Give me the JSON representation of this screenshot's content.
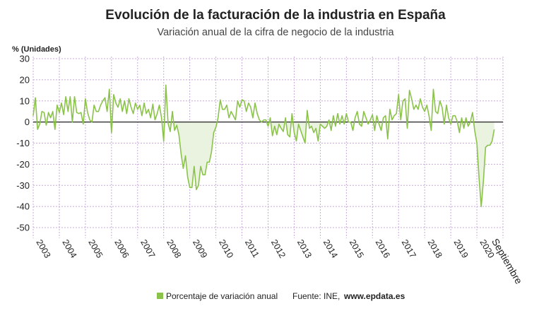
{
  "colors": {
    "series": "#8bc34a",
    "area": "#e9f3df",
    "grid": "#c9a8dd",
    "zero": "#222222"
  },
  "footer": {
    "source_label": "Fuente: INE,",
    "source_site": "www.epdata.es"
  },
  "chart_data": {
    "type": "line",
    "title": "Evolución de la facturación de la industria en España",
    "subtitle": "Variación anual de la cifra de negocio de la industria",
    "ylabel": "% (Unidades)",
    "ylim": [
      -55,
      31
    ],
    "yticks": [
      30,
      20,
      10,
      0,
      -10,
      -20,
      -30,
      -40,
      -50
    ],
    "grid": true,
    "x_tick_labels": [
      "2003",
      "2004",
      "2005",
      "2006",
      "2007",
      "2008",
      "2009",
      "2010",
      "2011",
      "2012",
      "2013",
      "2014",
      "2015",
      "2016",
      "2017",
      "2018",
      "2019",
      "2020"
    ],
    "end_label": "Septiembre",
    "legend": {
      "position": "bottom",
      "entries": [
        "Porcentaje de variación anual"
      ]
    },
    "series": [
      {
        "name": "Porcentaje de variación anual",
        "start": "2003-01",
        "end": "2020-09",
        "frequency": "monthly",
        "values": [
          3,
          11.5,
          -3.5,
          -1,
          5,
          4.5,
          -1.5,
          4.5,
          2,
          5,
          -3.5,
          8,
          4.5,
          9,
          3.5,
          12,
          5,
          12,
          0,
          12,
          4.5,
          4,
          4.5,
          -1,
          11,
          4.5,
          1,
          0,
          8,
          5,
          5,
          8,
          10,
          11.5,
          5,
          15.5,
          -5,
          13,
          9,
          7,
          11,
          5,
          10,
          4,
          11,
          7,
          4,
          9,
          6,
          8,
          3,
          9,
          4,
          6,
          2,
          8.5,
          1,
          4,
          8,
          2,
          -9,
          17.5,
          -0.5,
          -4.5,
          5,
          -4,
          -1.5,
          -6,
          -15,
          -22,
          -16,
          -26,
          -31,
          -31,
          -21,
          -32,
          -30,
          -21,
          -25,
          -25,
          -19,
          -19,
          -14,
          -5,
          -2.5,
          2,
          10.5,
          6,
          6,
          8,
          2,
          5,
          3,
          1,
          10,
          7,
          10.5,
          10,
          5,
          9,
          7,
          2,
          9,
          4,
          1,
          0,
          1,
          1,
          -2,
          2,
          -6.5,
          -2,
          -6,
          -1,
          -3,
          -4.5,
          2,
          -6,
          -7,
          4,
          -5,
          -9,
          -1,
          -4,
          -7,
          -10,
          5.5,
          -3,
          -2,
          -5,
          -3,
          -9,
          -1,
          -2,
          -3,
          -2,
          1,
          -4,
          3,
          -2,
          4,
          -1,
          3,
          -1,
          4,
          0,
          0,
          -4,
          2,
          5,
          -1,
          -2,
          5,
          2,
          -1,
          1,
          3.5,
          -4,
          3,
          -1,
          -4,
          2,
          3,
          -8,
          6,
          1,
          3,
          4,
          13,
          1,
          10,
          11,
          -3,
          15,
          11,
          6,
          8,
          6,
          11,
          7,
          5,
          8,
          3,
          -4,
          15.5,
          5,
          4,
          10,
          7,
          -1,
          8,
          2,
          -1,
          3,
          3,
          0,
          -5,
          2,
          -3,
          2,
          -2,
          0,
          4.5,
          -4,
          -10,
          -26.5,
          -40,
          -28,
          -12,
          -11,
          -11,
          -9,
          -3.5
        ]
      }
    ]
  }
}
